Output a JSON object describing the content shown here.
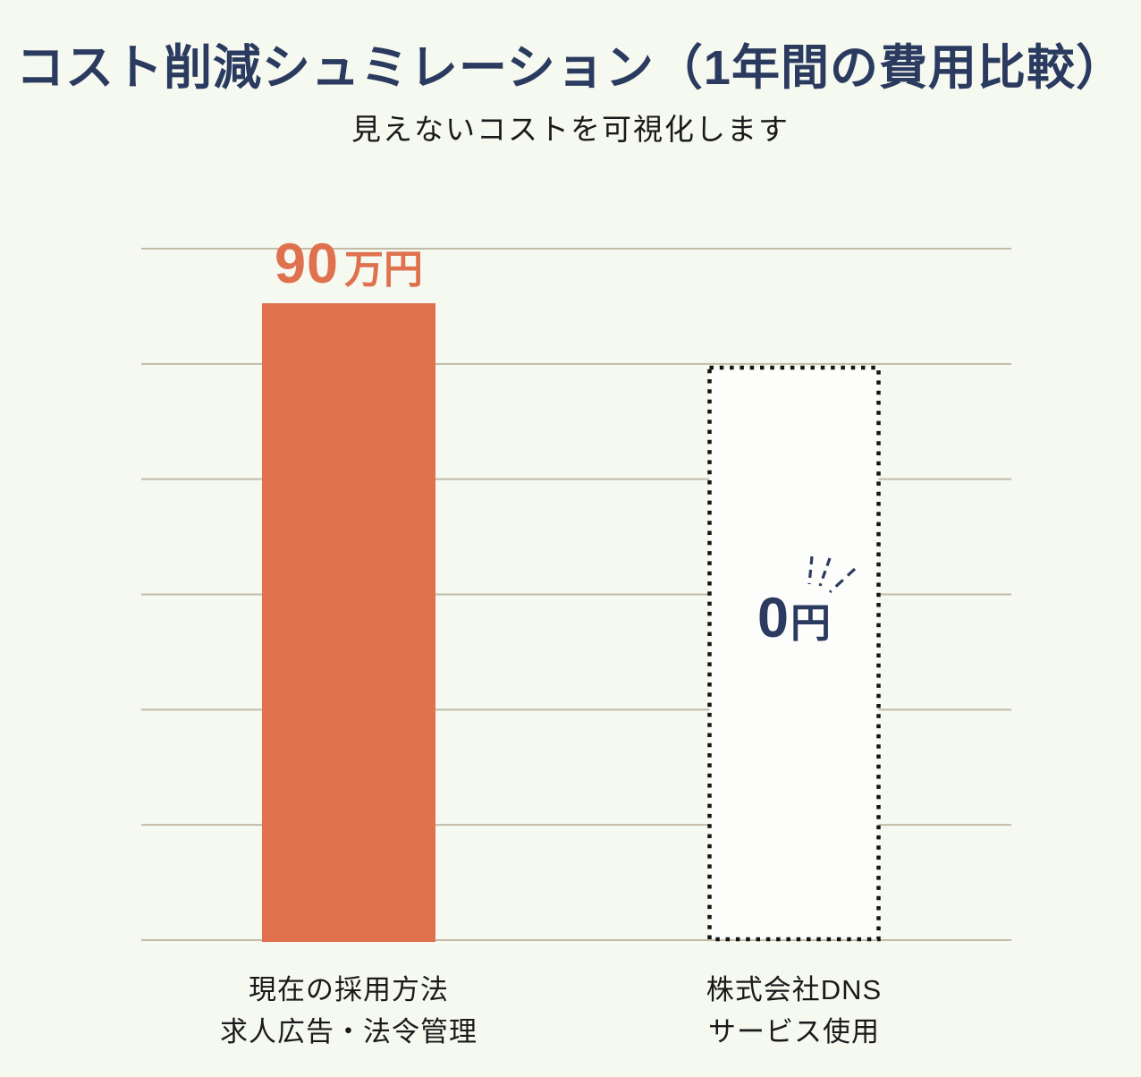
{
  "page": {
    "background": "#F5F9F0"
  },
  "header": {
    "title": "コスト削減シュミレーション（1年間の費用比較）",
    "subtitle": "見えないコストを可視化します"
  },
  "chart_data": {
    "type": "bar",
    "title": "コスト削減シュミレーション（1年間の費用比較）",
    "subtitle": "見えないコストを可視化します",
    "categories": [
      "現在の採用方法 求人広告・法令管理",
      "株式会社DNS サービス使用"
    ],
    "series": [
      {
        "name": "1年間の費用",
        "values": [
          900000,
          0
        ]
      }
    ],
    "value_labels": [
      "90万円",
      "0円"
    ],
    "unit": "円",
    "grid": true,
    "gridline_count": 7,
    "legend": "none",
    "ylim": [
      0,
      1000000
    ],
    "bars": [
      {
        "name": "current-method",
        "lines": [
          "現在の採用方法",
          "求人広告・法令管理"
        ],
        "value": 900000,
        "number": "90",
        "unit": "万円",
        "style": "solid",
        "color": "#E0714E",
        "height_frac": 0.92,
        "sparkle": false
      },
      {
        "name": "dns-service",
        "lines": [
          "株式会社DNS",
          "サービス使用"
        ],
        "value": 0,
        "number": "0",
        "unit": "円",
        "style": "dotted",
        "color": "#FDFEFB",
        "border_color": "#141414",
        "height_frac": 0.83,
        "sparkle": true
      }
    ],
    "colors": {
      "gridline": "#C2BBA7",
      "bar_orange": "#E0714E",
      "accent_navy": "#2B3A5F",
      "text": "#1A1A1A",
      "dotted_border": "#141414",
      "background": "#F5F9F0"
    }
  }
}
